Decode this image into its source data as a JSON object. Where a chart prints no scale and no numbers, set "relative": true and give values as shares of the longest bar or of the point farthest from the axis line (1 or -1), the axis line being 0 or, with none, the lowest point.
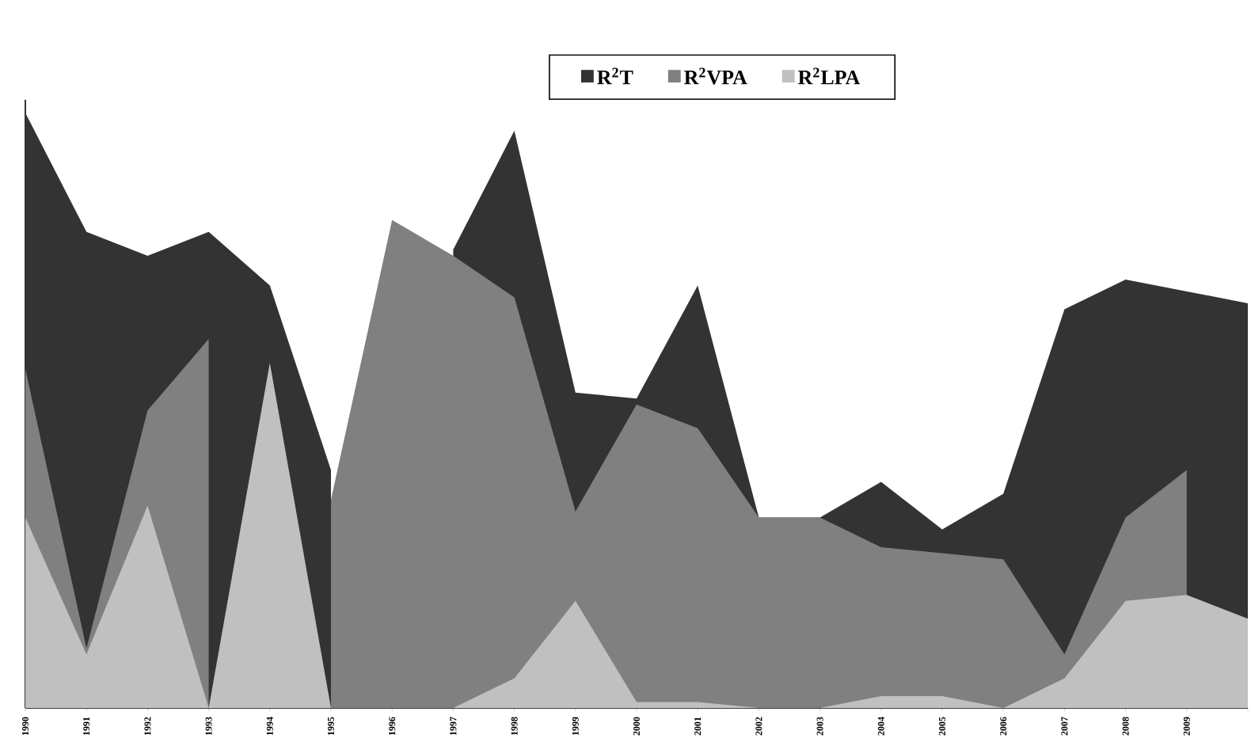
{
  "chart_data": {
    "type": "area",
    "relative": true,
    "legend": "top",
    "categories": [
      "1990",
      "1991",
      "1992",
      "1993",
      "1994",
      "1995",
      "1996",
      "1997",
      "1998",
      "1999",
      "2000",
      "2001",
      "2002",
      "2003",
      "2004",
      "2005",
      "2006",
      "2007",
      "2008",
      "2009",
      null
    ],
    "series": [
      {
        "name": "R$^{2}$T",
        "color": "#333333",
        "values": [
          1,
          0.8,
          0.76,
          0.8,
          0.71,
          0.4,
          null,
          0.77,
          0.97,
          0.53,
          0.52,
          0.71,
          0.32,
          0.32,
          0.38,
          0.3,
          0.36,
          0.67,
          0.72,
          0.7,
          0.68
        ]
      },
      {
        "name": "R$^{2}$VPA",
        "color": "#808080",
        "values": [
          0.57,
          0.1,
          0.5,
          0.62,
          null,
          0.35,
          0.82,
          0.76,
          0.69,
          0.33,
          0.51,
          0.47,
          0.32,
          0.32,
          0.27,
          0.26,
          0.25,
          0.09,
          0.32,
          0.4,
          null
        ]
      },
      {
        "name": "R$^{2}$LPA",
        "color": "#c0c0c0",
        "values": [
          0.32,
          0.09,
          0.34,
          0,
          0.58,
          0,
          0,
          0,
          0.05,
          0.18,
          0.01,
          0.01,
          0,
          0,
          0.02,
          0.02,
          0,
          0.05,
          0.18,
          0.19,
          0.15
        ]
      }
    ]
  }
}
